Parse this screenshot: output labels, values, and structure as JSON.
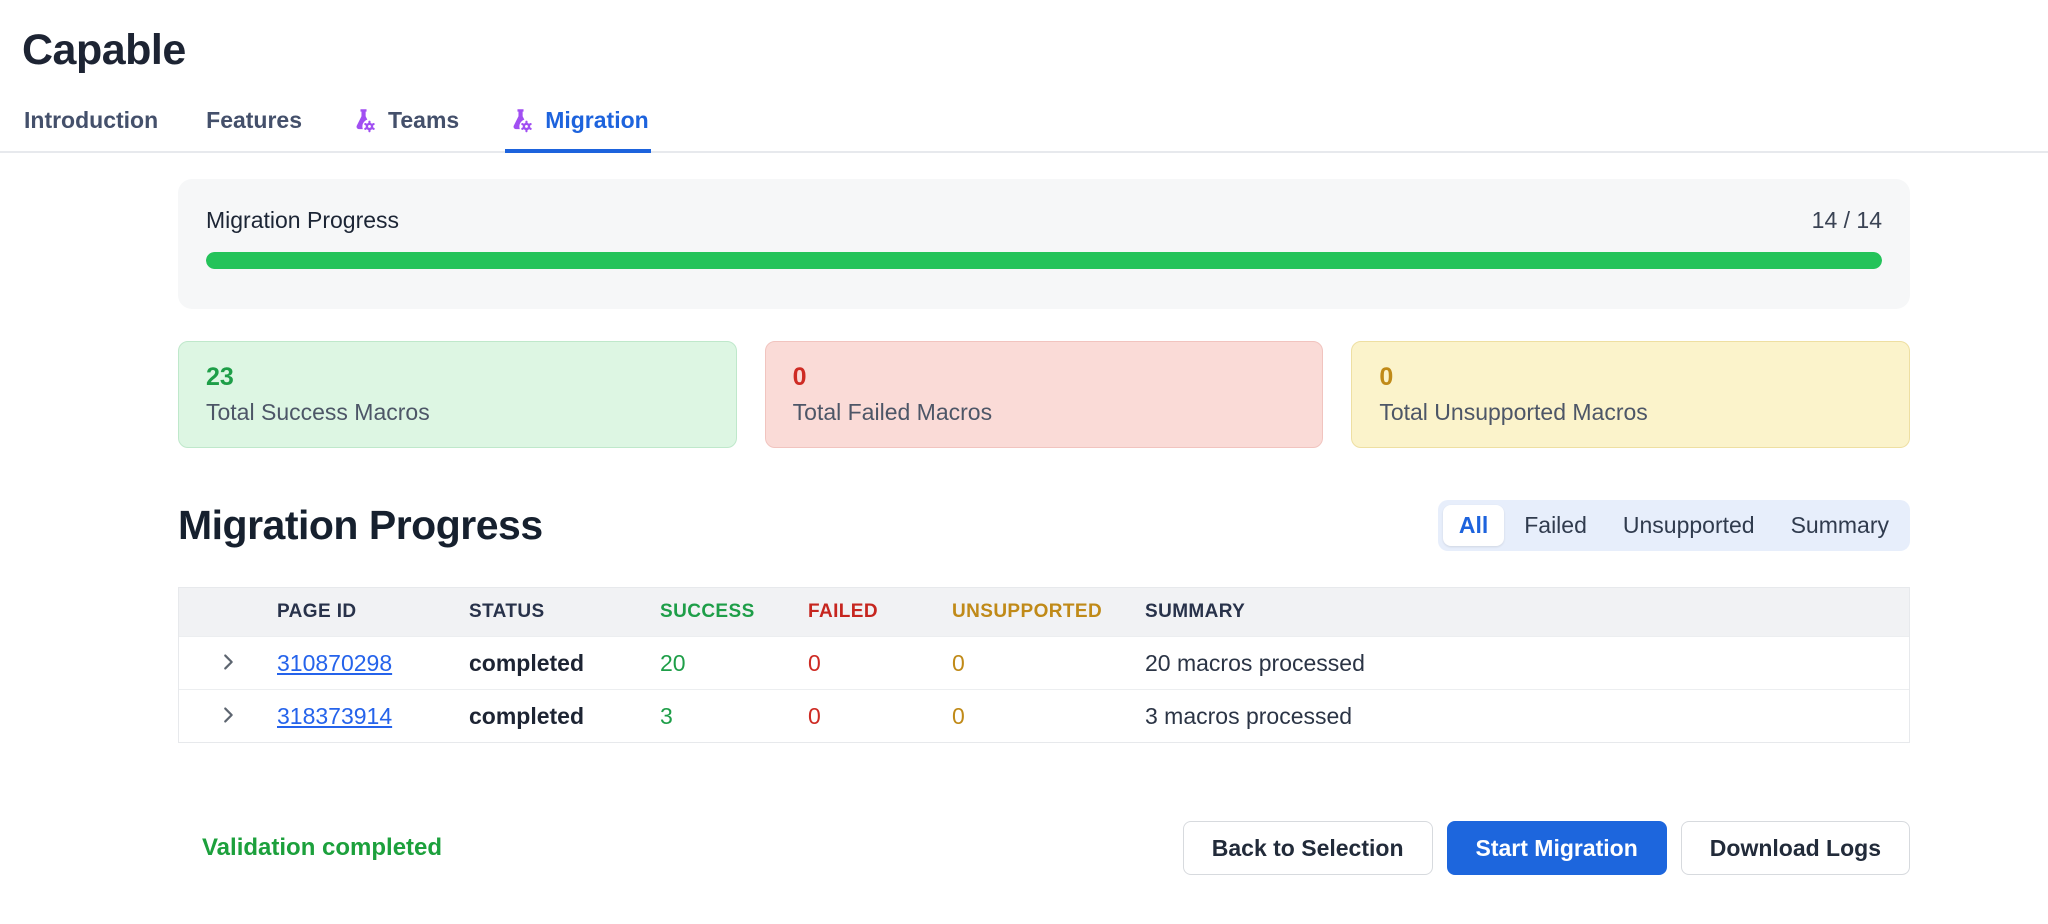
{
  "colors": {
    "accent_blue": "#1d63dd",
    "icon_purple": "#a14ff2",
    "progress_green": "#24c35a",
    "success_green": "#1e9e48",
    "danger_red": "#ce2b24",
    "warning_amber": "#c08a18",
    "link_blue": "#2563eb",
    "status_green": "#1ca03c"
  },
  "header": {
    "title": "Capable"
  },
  "tabs": [
    {
      "label": "Introduction",
      "icon": "",
      "active": false
    },
    {
      "label": "Features",
      "icon": "",
      "active": false
    },
    {
      "label": "Teams",
      "icon": "flask-gear-icon",
      "active": false
    },
    {
      "label": "Migration",
      "icon": "flask-gear-icon",
      "active": true
    }
  ],
  "progress_card": {
    "label": "Migration Progress",
    "count": "14 / 14",
    "percent": 100
  },
  "stat_cards": [
    {
      "value": "23",
      "label": "Total Success Macros",
      "theme": "success"
    },
    {
      "value": "0",
      "label": "Total Failed Macros",
      "theme": "danger"
    },
    {
      "value": "0",
      "label": "Total Unsupported Macros",
      "theme": "warning"
    }
  ],
  "section": {
    "title": "Migration Progress",
    "filters": [
      {
        "label": "All",
        "active": true
      },
      {
        "label": "Failed",
        "active": false
      },
      {
        "label": "Unsupported",
        "active": false
      },
      {
        "label": "Summary",
        "active": false
      }
    ]
  },
  "table": {
    "columns": [
      "PAGE ID",
      "STATUS",
      "SUCCESS",
      "FAILED",
      "UNSUPPORTED",
      "SUMMARY"
    ],
    "rows": [
      {
        "page_id": "310870298",
        "status": "completed",
        "success": "20",
        "failed": "0",
        "unsupported": "0",
        "summary": "20 macros processed"
      },
      {
        "page_id": "318373914",
        "status": "completed",
        "success": "3",
        "failed": "0",
        "unsupported": "0",
        "summary": "3 macros processed"
      }
    ]
  },
  "footer": {
    "status": "Validation completed",
    "back_button": "Back to Selection",
    "start_button": "Start Migration",
    "download_button": "Download Logs"
  }
}
